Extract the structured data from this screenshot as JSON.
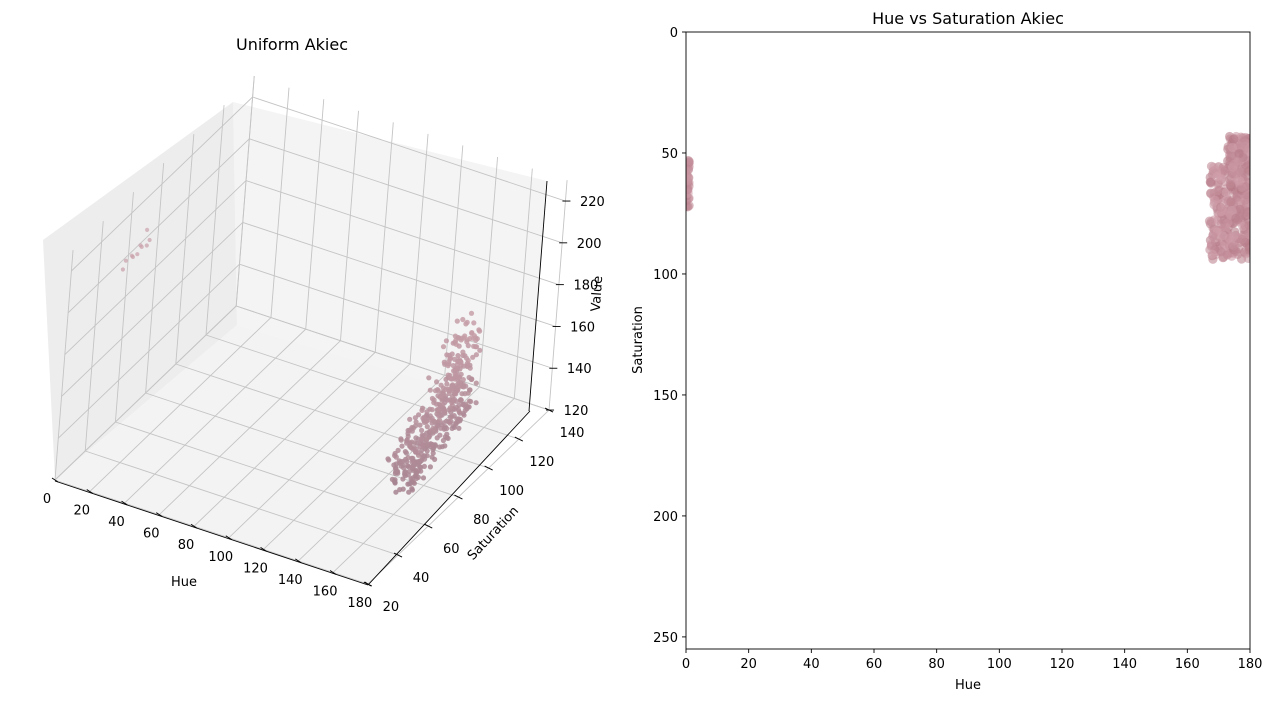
{
  "chart_data": [
    {
      "type": "scatter",
      "projection": "3d",
      "title": "Uniform Akiec",
      "xlabel": "Hue",
      "ylabel": "Saturation",
      "zlabel": "Value",
      "xlim": [
        0,
        180
      ],
      "ylim": [
        20,
        140
      ],
      "zlim": [
        120,
        230
      ],
      "xticks": [
        "0",
        "20",
        "40",
        "60",
        "80",
        "100",
        "120",
        "140",
        "160",
        "180"
      ],
      "yticks": [
        "20",
        "40",
        "60",
        "80",
        "100",
        "120",
        "140"
      ],
      "zticks": [
        "120",
        "140",
        "160",
        "180",
        "200",
        "220"
      ],
      "grid": true,
      "series": [
        {
          "color": "#c89aa4",
          "clusters": [
            {
              "x_range": [
                164,
                180
              ],
              "y_range": [
                45,
                90
              ],
              "z_range": [
                135,
                200
              ],
              "n": 460
            },
            {
              "x_range": [
                0,
                3
              ],
              "y_range": [
                55,
                72
              ],
              "z_range": [
                195,
                205
              ],
              "n": 10
            }
          ]
        }
      ]
    },
    {
      "type": "scatter",
      "title": "Hue vs Saturation Akiec",
      "xlabel": "Hue",
      "ylabel": "Saturation",
      "xlim": [
        0,
        180
      ],
      "ylim": [
        255,
        0
      ],
      "y_inverted": true,
      "xticks": [
        "0",
        "20",
        "40",
        "60",
        "80",
        "100",
        "120",
        "140",
        "160",
        "180"
      ],
      "yticks": [
        "0",
        "50",
        "100",
        "150",
        "200",
        "250"
      ],
      "grid": false,
      "series": [
        {
          "color": "#c88e9a",
          "clusters": [
            {
              "x_range": [
                167,
                180
              ],
              "y_range": [
                43,
                94
              ],
              "n": 420
            },
            {
              "x_range": [
                0,
                1
              ],
              "y_range": [
                53,
                73
              ],
              "n": 30
            }
          ]
        }
      ]
    }
  ]
}
